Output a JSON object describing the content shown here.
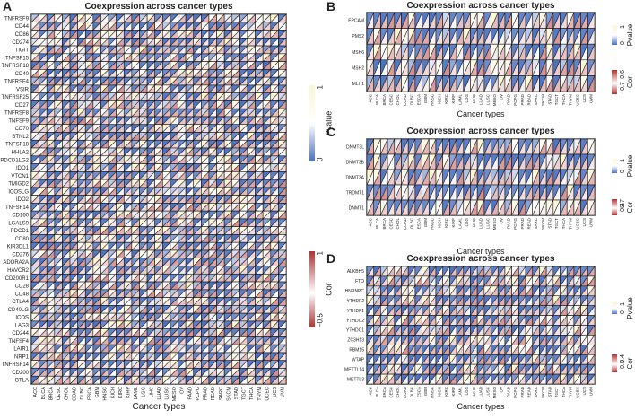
{
  "chart_data": [
    {
      "type": "heatmap",
      "panel": "A",
      "title": "Coexpression across cancer types",
      "xlabel": "Cancer types",
      "categories": [
        "ACC",
        "BLCA",
        "BRCA",
        "CESC",
        "CHOL",
        "COAD",
        "DLBC",
        "ESCA",
        "GBM",
        "HNSC",
        "KICH",
        "KIRC",
        "KIRP",
        "LAML",
        "LGG",
        "LIHC",
        "LUAD",
        "LUSC",
        "MESO",
        "OV",
        "PAAD",
        "PCPG",
        "PRAD",
        "READ",
        "SARC",
        "SKCM",
        "STAD",
        "TGCT",
        "THCA",
        "THYM",
        "UCEC",
        "UCS",
        "UVM"
      ],
      "rows": [
        "TNFRSF9",
        "CD44",
        "CD86",
        "CD274",
        "TIGIT",
        "TNFSF15",
        "TNFRSF18",
        "CD40",
        "TNFRSF4",
        "VSIR",
        "TNFRSF25",
        "CD27",
        "TNFRSF8",
        "TNFSF9",
        "CD70",
        "BTNL2",
        "TNFSF18",
        "HHLA2",
        "PDCD1LG2",
        "IDO1",
        "VTCN1",
        "TMIGD2",
        "ICOSLG",
        "IDO2",
        "TNFSF14",
        "CD160",
        "LGALS9",
        "PDCD1",
        "CD80",
        "KIR3DL1",
        "CD276",
        "ADORA2A",
        "HAVCR2",
        "CD200R1",
        "CD28",
        "CD48",
        "CTLA4",
        "CD40LG",
        "ICOS",
        "LAG3",
        "CD244",
        "TNFSF4",
        "LAIR1",
        "NRP1",
        "TNFRSF14",
        "CD200",
        "BTLA"
      ],
      "legend_pvalue": {
        "title": "Pvalue",
        "max": "1",
        "min": "0"
      },
      "legend_cor": {
        "title": "Cor",
        "max": "1",
        "min": "−0.5"
      }
    },
    {
      "type": "heatmap",
      "panel": "B",
      "title": "Coexpression across cancer types",
      "xlabel": "Cancer types",
      "categories": [
        "ACC",
        "BLCA",
        "BRCA",
        "CESC",
        "CHOL",
        "COAD",
        "DLBC",
        "ESCA",
        "GBM",
        "HNSC",
        "KICH",
        "KIRC",
        "KIRP",
        "LAML",
        "LGG",
        "LIHC",
        "LUAD",
        "LUSC",
        "MESO",
        "OV",
        "PAAD",
        "PCPG",
        "PRAD",
        "READ",
        "SARC",
        "SKCM",
        "STAD",
        "TGCT",
        "THCA",
        "THYM",
        "UCEC",
        "UCS",
        "UVM"
      ],
      "rows": [
        "EPCAM",
        "PMS2",
        "MSH6",
        "MSH2",
        "MLH1"
      ],
      "legend_pvalue": {
        "title": "Pvalue",
        "max": "1",
        "min": "0"
      },
      "legend_cor": {
        "title": "Cor",
        "max": "0.6",
        "min": "−0.7"
      }
    },
    {
      "type": "heatmap",
      "panel": "C",
      "title": "Coexpression across cancer types",
      "xlabel": "Cancer types",
      "categories": [
        "ACC",
        "BLCA",
        "BRCA",
        "CESC",
        "CHOL",
        "COAD",
        "DLBC",
        "ESCA",
        "GBM",
        "HNSC",
        "KICH",
        "KIRC",
        "KIRP",
        "LAML",
        "LGG",
        "LIHC",
        "LUAD",
        "LUSC",
        "MESO",
        "OV",
        "PAAD",
        "PCPG",
        "PRAD",
        "READ",
        "SARC",
        "SKCM",
        "STAD",
        "TGCT",
        "THCA",
        "THYM",
        "UCEC",
        "UCS",
        "UVM"
      ],
      "rows": [
        "DNMT3L",
        "DNMT3B",
        "DNMT3A",
        "TRDMT1",
        "DNMT1"
      ],
      "legend_pvalue": {
        "title": "Pvalue",
        "max": "1",
        "min": "0"
      },
      "legend_cor": {
        "title": "Cor",
        "max": "0.7",
        "min": "−0.4"
      }
    },
    {
      "type": "heatmap",
      "panel": "D",
      "title": "Coexpression across cancer types",
      "xlabel": "Cancer types",
      "categories": [
        "ACC",
        "BLCA",
        "BRCA",
        "CESC",
        "CHOL",
        "COAD",
        "DLBC",
        "ESCA",
        "GBM",
        "HNSC",
        "KICH",
        "KIRC",
        "KIRP",
        "LAML",
        "LGG",
        "LIHC",
        "LUAD",
        "LUSC",
        "MESO",
        "OV",
        "PAAD",
        "PCPG",
        "PRAD",
        "READ",
        "SARC",
        "SKCM",
        "STAD",
        "TGCT",
        "THCA",
        "THYM",
        "UCEC",
        "UCS",
        "UVM"
      ],
      "rows": [
        "ALKBH5",
        "FTO",
        "HNRNPC",
        "YTHDF2",
        "YTHDF1",
        "YTHDC2",
        "YTHDC1",
        "ZC3H13",
        "RBM15",
        "WTAP",
        "METTL14",
        "METTL3"
      ],
      "legend_pvalue": {
        "title": "Pvalue",
        "max": "1",
        "min": "0"
      },
      "legend_cor": {
        "title": "Cor",
        "max": "0.4",
        "min": "−0.5"
      }
    }
  ],
  "colors": {
    "pvalue_low": "#4a72c2",
    "pvalue_mid": "#ffffff",
    "pvalue_high": "#fbf6d2",
    "cor_extreme": "#b0312e",
    "cor_mid": "#ffffff"
  }
}
